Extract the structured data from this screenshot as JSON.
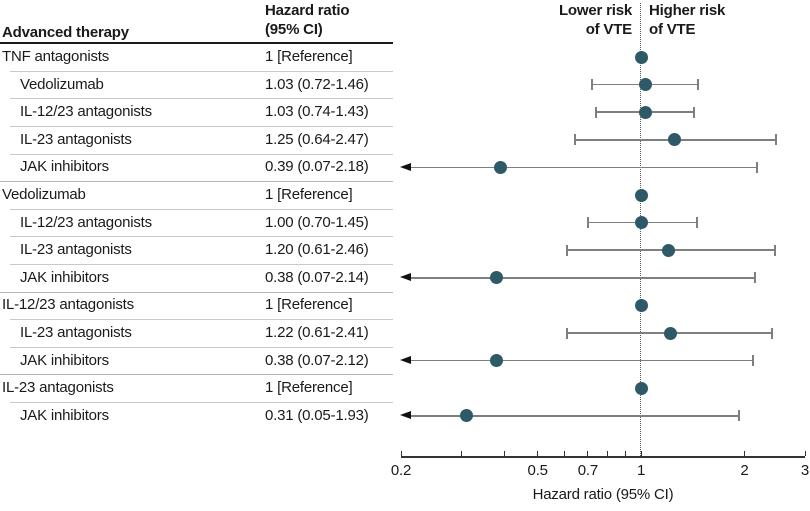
{
  "table": {
    "col1_header": "Advanced therapy",
    "col2_header_line1": "Hazard ratio",
    "col2_header_line2": "(95% CI)"
  },
  "plot_annotations": {
    "lower_line1": "Lower risk",
    "lower_line2": "of VTE",
    "higher_line1": "Higher risk",
    "higher_line2": "of VTE"
  },
  "chart_data": {
    "type": "scatter",
    "subtype": "forest-plot",
    "x_axis": {
      "scale": "log",
      "min": 0.2,
      "max": 3,
      "ticks": [
        0.2,
        0.3,
        0.4,
        0.5,
        0.6,
        0.7,
        0.8,
        0.9,
        1,
        2,
        3
      ],
      "labeled_ticks": [
        {
          "v": 0.2,
          "label": "0.2"
        },
        {
          "v": 0.5,
          "label": "0.5"
        },
        {
          "v": 0.7,
          "label": "0.7"
        },
        {
          "v": 1,
          "label": "1"
        },
        {
          "v": 2,
          "label": "2"
        },
        {
          "v": 3,
          "label": "3"
        }
      ],
      "label": "Hazard ratio (95% CI)"
    },
    "reference_line_x": 1,
    "rows": [
      {
        "label": "TNF antagonists",
        "hr_text": "1 [Reference]",
        "hr": 1,
        "ref": true,
        "group_header": true
      },
      {
        "label": "Vedolizumab",
        "hr_text": "1.03 (0.72-1.46)",
        "hr": 1.03,
        "lo": 0.72,
        "hi": 1.46
      },
      {
        "label": "IL-12/23 antagonists",
        "hr_text": "1.03 (0.74-1.43)",
        "hr": 1.03,
        "lo": 0.74,
        "hi": 1.43
      },
      {
        "label": "IL-23 antagonists",
        "hr_text": "1.25 (0.64-2.47)",
        "hr": 1.25,
        "lo": 0.64,
        "hi": 2.47
      },
      {
        "label": "JAK inhibitors",
        "hr_text": "0.39 (0.07-2.18)",
        "hr": 0.39,
        "lo": 0.07,
        "hi": 2.18
      },
      {
        "label": "Vedolizumab",
        "hr_text": "1 [Reference]",
        "hr": 1,
        "ref": true,
        "group_header": true
      },
      {
        "label": "IL-12/23 antagonists",
        "hr_text": "1.00 (0.70-1.45)",
        "hr": 1.0,
        "lo": 0.7,
        "hi": 1.45
      },
      {
        "label": "IL-23 antagonists",
        "hr_text": "1.20 (0.61-2.46)",
        "hr": 1.2,
        "lo": 0.61,
        "hi": 2.46
      },
      {
        "label": "JAK inhibitors",
        "hr_text": "0.38 (0.07-2.14)",
        "hr": 0.38,
        "lo": 0.07,
        "hi": 2.14
      },
      {
        "label": "IL-12/23 antagonists",
        "hr_text": "1 [Reference]",
        "hr": 1,
        "ref": true,
        "group_header": true
      },
      {
        "label": "IL-23 antagonists",
        "hr_text": "1.22 (0.61-2.41)",
        "hr": 1.22,
        "lo": 0.61,
        "hi": 2.41
      },
      {
        "label": "JAK inhibitors",
        "hr_text": "0.38 (0.07-2.12)",
        "hr": 0.38,
        "lo": 0.07,
        "hi": 2.12
      },
      {
        "label": "IL-23 antagonists",
        "hr_text": "1 [Reference]",
        "hr": 1,
        "ref": true,
        "group_header": true
      },
      {
        "label": "JAK inhibitors",
        "hr_text": "0.31 (0.05-1.93)",
        "hr": 0.31,
        "lo": 0.05,
        "hi": 1.93
      }
    ],
    "colors": {
      "dot": "#2e5966",
      "ci_line": "#7f7f7f",
      "arrow": "#111111",
      "separator": "#c9c9c9",
      "section_separator": "#b5b5b5",
      "header_rule": "#1a1a1a",
      "axis": "#333333"
    }
  }
}
